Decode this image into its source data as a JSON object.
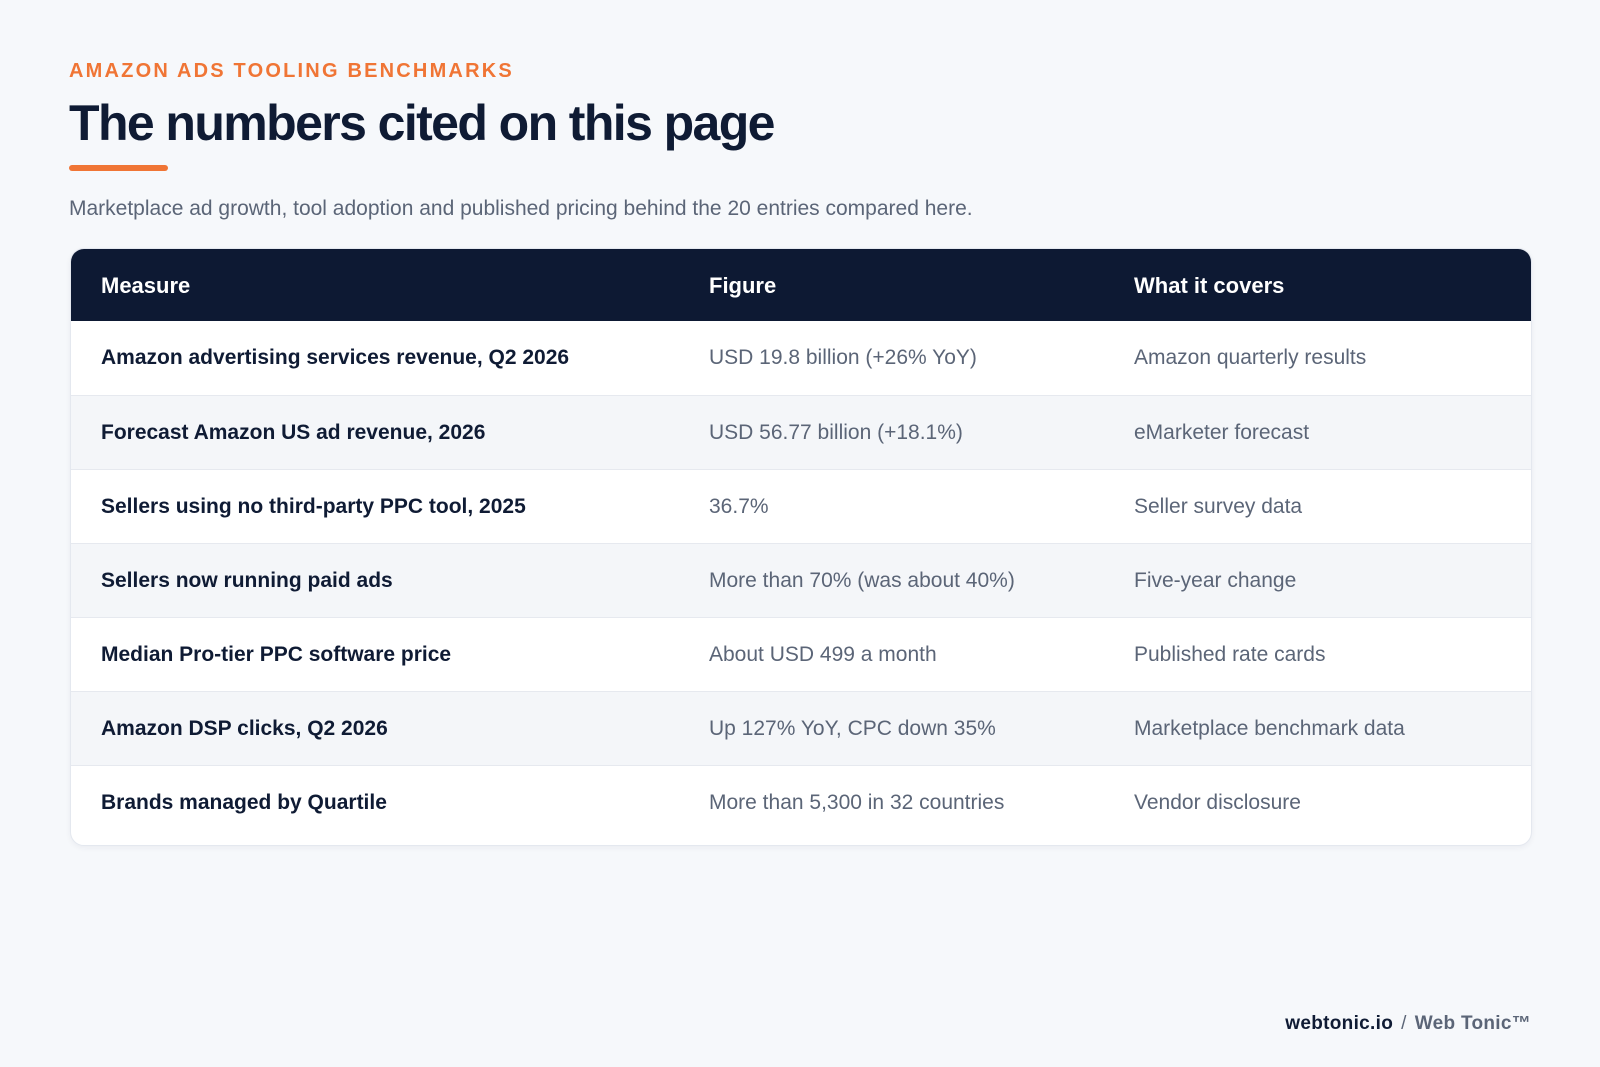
{
  "header": {
    "eyebrow": "AMAZON ADS TOOLING BENCHMARKS",
    "title": "The numbers cited on this page",
    "subtitle": "Marketplace ad growth, tool adoption and published pricing behind the 20 entries compared here."
  },
  "table": {
    "columns": [
      "Measure",
      "Figure",
      "What it covers"
    ],
    "rows": [
      {
        "measure": "Amazon advertising services revenue, Q2 2026",
        "figure": "USD 19.8 billion (+26% YoY)",
        "covers": "Amazon quarterly results"
      },
      {
        "measure": "Forecast Amazon US ad revenue, 2026",
        "figure": "USD 56.77 billion (+18.1%)",
        "covers": "eMarketer forecast"
      },
      {
        "measure": "Sellers using no third-party PPC tool, 2025",
        "figure": "36.7%",
        "covers": "Seller survey data"
      },
      {
        "measure": "Sellers now running paid ads",
        "figure": "More than 70% (was about 40%)",
        "covers": "Five-year change"
      },
      {
        "measure": "Median Pro-tier PPC software price",
        "figure": "About USD 499 a month",
        "covers": "Published rate cards"
      },
      {
        "measure": "Amazon DSP clicks, Q2 2026",
        "figure": "Up 127% YoY, CPC down 35%",
        "covers": "Marketplace benchmark data"
      },
      {
        "measure": "Brands managed by Quartile",
        "figure": "More than 5,300 in 32 countries",
        "covers": "Vendor disclosure"
      }
    ]
  },
  "footer": {
    "site": "webtonic.io",
    "separator": "/",
    "brand": "Web Tonic™"
  },
  "colors": {
    "accent": "#f07535",
    "header_bg": "#0d1933",
    "page_bg": "#f6f8fb"
  }
}
